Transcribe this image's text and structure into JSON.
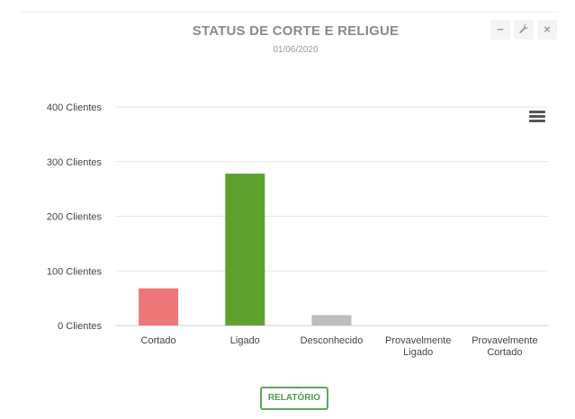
{
  "header": {
    "title": "STATUS DE CORTE E RELIGUE",
    "date": "01/06/2020"
  },
  "tools": [
    {
      "name": "minimize-icon",
      "glyph": "−"
    },
    {
      "name": "wrench-icon",
      "glyph": "🔧"
    },
    {
      "name": "close-icon",
      "glyph": "×"
    }
  ],
  "chart_data": {
    "type": "bar",
    "categories": [
      [
        "Cortado"
      ],
      [
        "Ligado"
      ],
      [
        "Desconhecido"
      ],
      [
        "Provavelmente",
        "Ligado"
      ],
      [
        "Provavelmente",
        "Cortado"
      ]
    ],
    "values": [
      68,
      278,
      19,
      0,
      0
    ],
    "colors": [
      "#ee7779",
      "#5ea12f",
      "#bdbdbd",
      "#bdbdbd",
      "#bdbdbd"
    ],
    "yticks": [
      "0 Clientes",
      "100 Clientes",
      "200 Clientes",
      "300 Clientes",
      "400 Clientes"
    ],
    "ylim": [
      0,
      400
    ],
    "grid": true
  },
  "footer": {
    "button_label": "RELATÓRIO"
  }
}
